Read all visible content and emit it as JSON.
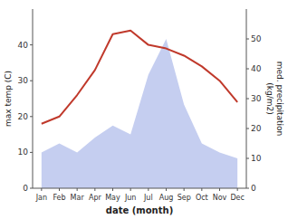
{
  "chart_data": {
    "type": "line",
    "x_label": "date (month)",
    "y_label": "max temp (C)",
    "y2_label": "med. precipitation\n(kg/m2)",
    "categories": [
      "Jan",
      "Feb",
      "Mar",
      "Apr",
      "May",
      "Jun",
      "Jul",
      "Aug",
      "Sep",
      "Oct",
      "Nov",
      "Dec"
    ],
    "series": [
      {
        "type": "area",
        "axis": "y2",
        "color": "#c5cef0",
        "values": [
          12,
          15,
          12,
          17,
          21,
          18,
          38,
          50,
          28,
          15,
          12,
          10
        ]
      },
      {
        "type": "line",
        "color": "#c0392b",
        "values": [
          18,
          20,
          26,
          33,
          43,
          44,
          40,
          39,
          37,
          34,
          30,
          24
        ]
      }
    ],
    "ylim": [
      0,
      50
    ],
    "yticks": [
      0,
      10,
      20,
      30,
      40
    ],
    "y2lim": [
      0,
      60
    ],
    "y2ticks": [
      0,
      10,
      20,
      30,
      40,
      50
    ],
    "grid": false
  }
}
